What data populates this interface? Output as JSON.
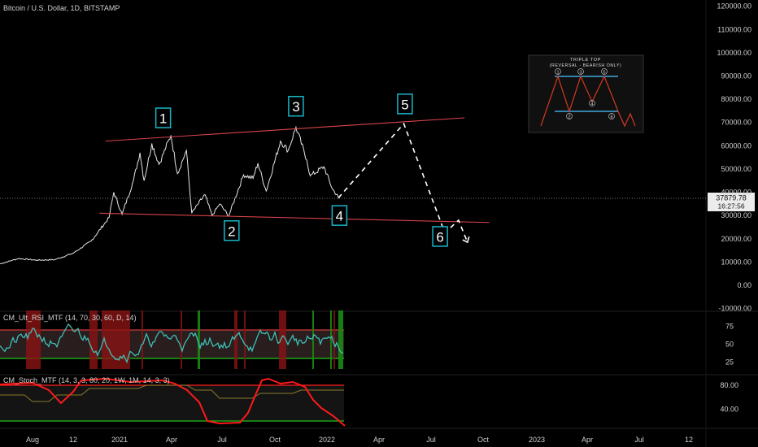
{
  "header": {
    "title": "Bitcoin / U.S. Dollar, 1D, BITSTAMP"
  },
  "price_tag": {
    "price": "37879.78",
    "countdown": "16:27:56"
  },
  "indicators": {
    "rsi_label": "CM_Ult_RSI_MTF (14, 70, 30, 60, D, 14)",
    "stoch_label": "CM_Stoch_MTF (14, 3, 3, 80, 20, 1W, 1M, 14, 3, 3)"
  },
  "inset": {
    "title": "TRIPLE TOP",
    "subtitle": "(REVERSAL - BEARISH ONLY)",
    "labels": [
      "1",
      "2",
      "3",
      "4",
      "5",
      "6"
    ]
  },
  "colors": {
    "price_line": "#e6e6e6",
    "trendline": "#d9434a",
    "projection": "#ffffff",
    "wave_box": "#18b5c8",
    "rsi_line": "#3cc0b5",
    "rsi_band_line": "#d13b3b",
    "rsi_band_fill": "#3a2a2a",
    "oversold_line": "#22c21a",
    "stoch_line": "#ff1a1a",
    "stoch_signal": "#8a7a2a"
  },
  "chart_data": {
    "type": "line",
    "title": "Bitcoin / U.S. Dollar, 1D, BITSTAMP",
    "x_ticks": [
      "Aug",
      "12",
      "2021",
      "Apr",
      "Jul",
      "Oct",
      "2022",
      "Apr",
      "Jul",
      "Oct",
      "2023",
      "Apr",
      "Jul",
      "12"
    ],
    "y_ticks": [
      "120000.00",
      "110000.00",
      "100000.00",
      "90000.00",
      "80000.00",
      "70000.00",
      "60000.00",
      "50000.00",
      "40000.00",
      "30000.00",
      "20000.00",
      "10000.00",
      "0.00",
      "-10000.00"
    ],
    "ylim": [
      -10000,
      120000
    ],
    "series": [
      {
        "values": [
          [
            "2020-07-01",
            9200
          ],
          [
            "2020-08-01",
            11500
          ],
          [
            "2020-09-01",
            10800
          ],
          [
            "2020-10-01",
            11000
          ],
          [
            "2020-11-01",
            13800
          ],
          [
            "2020-12-01",
            19000
          ],
          [
            "2020-12-31",
            29000
          ],
          [
            "2021-01-08",
            40000
          ],
          [
            "2021-01-22",
            30500
          ],
          [
            "2021-02-10",
            45000
          ],
          [
            "2021-02-21",
            57000
          ],
          [
            "2021-02-28",
            45000
          ],
          [
            "2021-03-13",
            61000
          ],
          [
            "2021-03-25",
            52000
          ],
          [
            "2021-04-14",
            64500
          ],
          [
            "2021-04-25",
            48000
          ],
          [
            "2021-05-10",
            58000
          ],
          [
            "2021-05-19",
            31000
          ],
          [
            "2021-06-10",
            39000
          ],
          [
            "2021-06-22",
            30000
          ],
          [
            "2021-07-05",
            35000
          ],
          [
            "2021-07-20",
            29800
          ],
          [
            "2021-08-14",
            47500
          ],
          [
            "2021-08-30",
            46000
          ],
          [
            "2021-09-07",
            52500
          ],
          [
            "2021-09-21",
            40500
          ],
          [
            "2021-10-15",
            62000
          ],
          [
            "2021-10-28",
            58000
          ],
          [
            "2021-11-10",
            68000
          ],
          [
            "2021-11-28",
            54000
          ],
          [
            "2021-12-04",
            47000
          ],
          [
            "2021-12-27",
            51000
          ],
          [
            "2022-01-10",
            41500
          ],
          [
            "2022-01-20",
            38000
          ]
        ]
      }
    ],
    "projection": [
      [
        "2022-01-20",
        37500
      ],
      [
        "2022-05-10",
        69500
      ],
      [
        "2022-07-18",
        22500
      ],
      [
        "2022-08-10",
        28000
      ],
      [
        "2022-08-25",
        18500
      ]
    ],
    "trendlines": [
      {
        "from": [
          "2020-12-25",
          62000
        ],
        "to": [
          "2022-08-20",
          72000
        ]
      },
      {
        "from": [
          "2020-12-15",
          31000
        ],
        "to": [
          "2022-10-01",
          27000
        ]
      }
    ],
    "wave_labels": [
      {
        "label": "1",
        "x": "2021-04-01",
        "y": 72000
      },
      {
        "label": "2",
        "x": "2021-07-25",
        "y": 23500
      },
      {
        "label": "3",
        "x": "2021-11-10",
        "y": 77000
      },
      {
        "label": "4",
        "x": "2022-01-22",
        "y": 30000
      },
      {
        "label": "5",
        "x": "2022-05-12",
        "y": 78000
      },
      {
        "label": "6",
        "x": "2022-07-10",
        "y": 21000
      }
    ],
    "rsi": {
      "ticks": [
        "75",
        "50",
        "25"
      ],
      "upper": 70,
      "lower": 30
    },
    "stoch": {
      "ticks": [
        "80.00",
        "40.00"
      ],
      "upper": 80,
      "lower": 20
    }
  }
}
